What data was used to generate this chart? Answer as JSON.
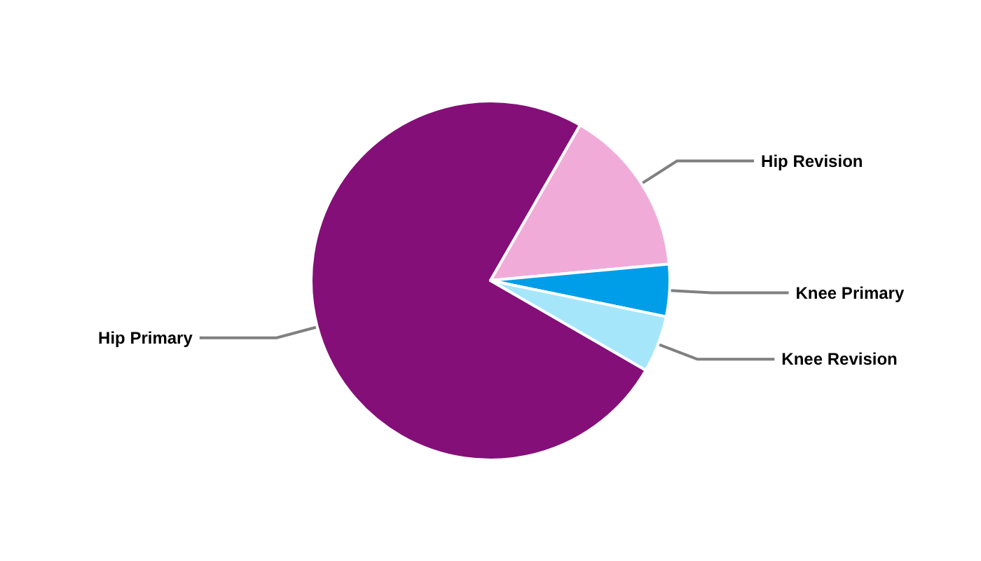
{
  "chart_data": {
    "type": "pie",
    "categories": [
      "Hip Primary",
      "Hip Revision",
      "Knee Primary",
      "Knee Revision"
    ],
    "values": [
      75,
      15.2,
      4.7,
      5.1
    ],
    "colors": [
      "#850f78",
      "#f1abd9",
      "#009ee8",
      "#a6e6fb"
    ],
    "legend": false
  }
}
